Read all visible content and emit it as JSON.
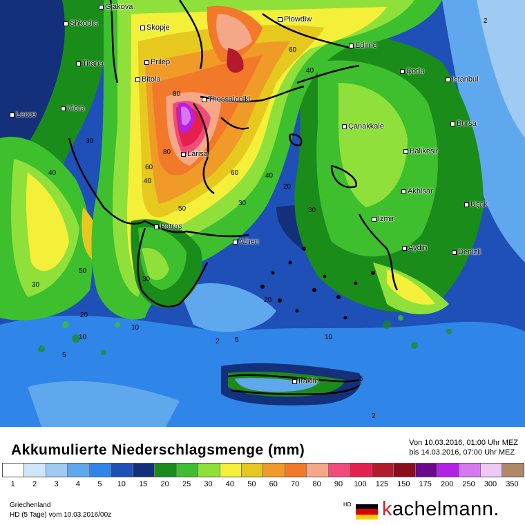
{
  "map": {
    "cities": [
      {
        "name": "Gjakova"
      },
      {
        "name": "Shkodra"
      },
      {
        "name": "Skopje"
      },
      {
        "name": "Plowdiw"
      },
      {
        "name": "Edirne"
      },
      {
        "name": "Tirana"
      },
      {
        "name": "Prilep"
      },
      {
        "name": "Bitola"
      },
      {
        "name": "Çorlu"
      },
      {
        "name": "Istanbul"
      },
      {
        "name": "Thessaloniki"
      },
      {
        "name": "Lecce"
      },
      {
        "name": "Vlora"
      },
      {
        "name": "Çanakkale"
      },
      {
        "name": "Bursa"
      },
      {
        "name": "Balikesir"
      },
      {
        "name": "Lárisa"
      },
      {
        "name": "Akhisar"
      },
      {
        "name": "Uşak"
      },
      {
        "name": "Izmir"
      },
      {
        "name": "Patras"
      },
      {
        "name": "Athen"
      },
      {
        "name": "Aydin"
      },
      {
        "name": "Denizli"
      },
      {
        "name": "Iraklio"
      }
    ],
    "contour_labels": [
      "2",
      "30",
      "40",
      "60",
      "80",
      "80",
      "60",
      "40",
      "30",
      "50",
      "60",
      "40",
      "30",
      "20",
      "10",
      "5",
      "2",
      "5",
      "10",
      "20",
      "30",
      "50",
      "40",
      "30",
      "20",
      "10",
      "5",
      "2"
    ]
  },
  "footer": {
    "title": "Akkumulierte Niederschlagsmenge (mm)",
    "period_from": "Von 10.03.2016, 01:00 Uhr MEZ",
    "period_to": "bis 14.03.2016, 07:00 Uhr MEZ",
    "region": "Griechenland",
    "model": "HD (5 Tage) vom 10.03.2016/00z",
    "brand_hd": "HD",
    "brand_k": "k",
    "brand_rest": "achelmann."
  },
  "legend": [
    {
      "label": "1",
      "color": "#ffffff"
    },
    {
      "label": "2",
      "color": "#cfe6fa"
    },
    {
      "label": "3",
      "color": "#9fcaf2"
    },
    {
      "label": "4",
      "color": "#5fa8ee"
    },
    {
      "label": "5",
      "color": "#2f86e8"
    },
    {
      "label": "10",
      "color": "#1e50b8"
    },
    {
      "label": "15",
      "color": "#14307a"
    },
    {
      "label": "20",
      "color": "#1a8c1a"
    },
    {
      "label": "25",
      "color": "#3dbf2e"
    },
    {
      "label": "30",
      "color": "#8fe03a"
    },
    {
      "label": "40",
      "color": "#f4f03a"
    },
    {
      "label": "50",
      "color": "#e6c81e"
    },
    {
      "label": "60",
      "color": "#f09a28"
    },
    {
      "label": "70",
      "color": "#f2782a"
    },
    {
      "label": "80",
      "color": "#f4a888"
    },
    {
      "label": "90",
      "color": "#f24a7a"
    },
    {
      "label": "100",
      "color": "#e6204e"
    },
    {
      "label": "125",
      "color": "#b41a2e"
    },
    {
      "label": "150",
      "color": "#8a0e1e"
    },
    {
      "label": "175",
      "color": "#6a0a8a"
    },
    {
      "label": "200",
      "color": "#b420e6"
    },
    {
      "label": "250",
      "color": "#d878f0"
    },
    {
      "label": "300",
      "color": "#f0c8f6"
    },
    {
      "label": "350",
      "color": "#b08868"
    }
  ]
}
